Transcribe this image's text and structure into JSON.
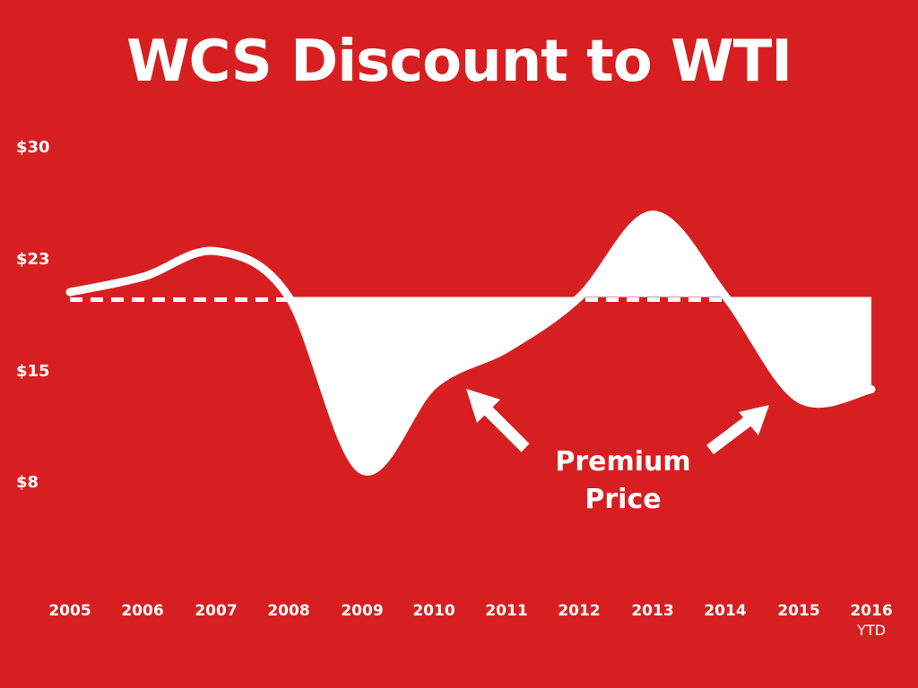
{
  "chart_data": {
    "type": "line",
    "title": "WCS Discount to WTI",
    "y_ticks": [
      "$30",
      "$23",
      "$15",
      "$8"
    ],
    "ylim": [
      8,
      30
    ],
    "x_categories": [
      "2005",
      "2006",
      "2007",
      "2008",
      "2009",
      "2010",
      "2011",
      "2012",
      "2013",
      "2014",
      "2015",
      "2016"
    ],
    "x_sublabel": {
      "2016": "YTD"
    },
    "reference_value": 20,
    "series": [
      {
        "x": [
          2005,
          2006,
          2007,
          2008,
          2009,
          2010,
          2011,
          2012,
          2013,
          2014,
          2015,
          2016
        ],
        "values": [
          20.5,
          21.5,
          23.2,
          20.2,
          8.8,
          14.4,
          16.8,
          20.2,
          25.6,
          20.2,
          13.5,
          14.1
        ]
      }
    ],
    "annotation": [
      "Premium",
      "Price"
    ],
    "fill_below_reference": true,
    "grid": false
  },
  "colors": {
    "background": "#d71f21",
    "foreground": "#ffffff"
  }
}
